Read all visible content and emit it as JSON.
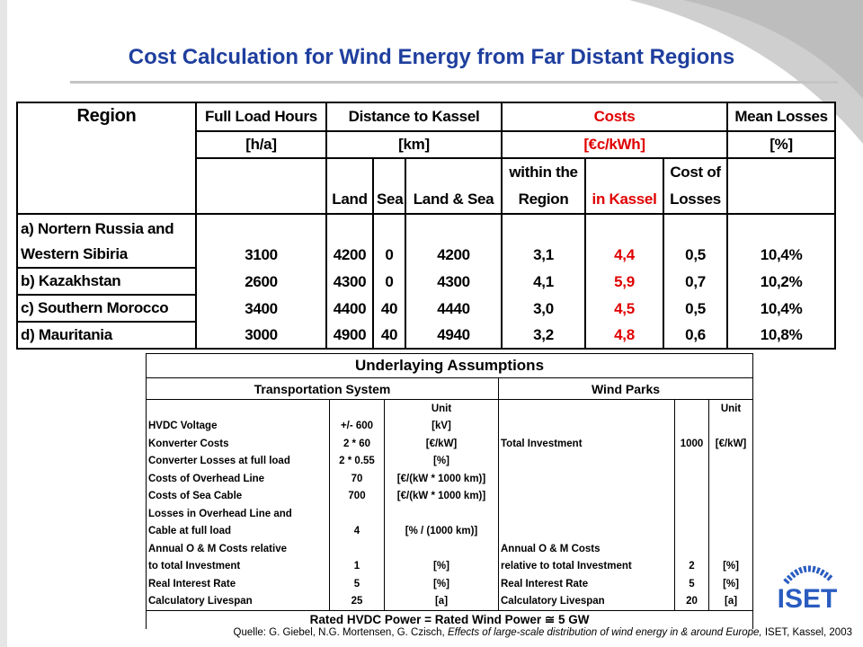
{
  "header": {
    "title": "Cost Calculation for Wind Energy from Far Distant Regions"
  },
  "costs_table": {
    "head": {
      "region": "Region",
      "hours": "Full Load Hours",
      "distance": "Distance to Kassel",
      "costs": "Costs",
      "losses": "Mean Losses"
    },
    "units": {
      "hours": "[h/a]",
      "distance": "[km]",
      "costs": "[€c/kWh]",
      "losses": "[%]"
    },
    "sub": {
      "land": "Land",
      "sea": "Sea",
      "land_sea": "Land & Sea",
      "within": "within the Region",
      "kassel": "in Kassel",
      "cost_losses": "Cost of Losses"
    },
    "rows": [
      {
        "region": [
          "a) Nortern Russia and",
          "Western Sibiria"
        ],
        "hours": "3100",
        "land": "4200",
        "sea": "0",
        "land_sea": "4200",
        "within": "3,1",
        "kassel": "4,4",
        "cost_losses": "0,5",
        "losses": "10,4%"
      },
      {
        "region": [
          "b) Kazakhstan"
        ],
        "hours": "2600",
        "land": "4300",
        "sea": "0",
        "land_sea": "4300",
        "within": "4,1",
        "kassel": "5,9",
        "cost_losses": "0,7",
        "losses": "10,2%"
      },
      {
        "region": [
          "c) Southern Morocco"
        ],
        "hours": "3400",
        "land": "4400",
        "sea": "40",
        "land_sea": "4440",
        "within": "3,0",
        "kassel": "4,5",
        "cost_losses": "0,5",
        "losses": "10,4%"
      },
      {
        "region": [
          "d) Mauritania"
        ],
        "hours": "3000",
        "land": "4900",
        "sea": "40",
        "land_sea": "4940",
        "within": "3,2",
        "kassel": "4,8",
        "cost_losses": "0,6",
        "losses": "10,8%"
      }
    ]
  },
  "assumptions": {
    "title": "Underlaying Assumptions",
    "transport_title": "Transportation System",
    "wind_title": "Wind Parks",
    "rows": [
      [
        null,
        null,
        "Unit",
        null,
        null,
        "Unit"
      ],
      [
        "HVDC Voltage",
        "+/- 600",
        "[kV]",
        null,
        null,
        null
      ],
      [
        "Konverter Costs",
        "2 * 60",
        "[€/kW]",
        "Total Investment",
        "1000",
        "[€/kW]"
      ],
      [
        "Converter Losses at full load",
        "2 * 0.55",
        "[%]",
        null,
        null,
        null
      ],
      [
        "Costs of Overhead Line",
        "70",
        "[€/(kW * 1000 km)]",
        null,
        null,
        null
      ],
      [
        "Costs of Sea Cable",
        "700",
        "[€/(kW * 1000 km)]",
        null,
        null,
        null
      ],
      [
        "Losses in Overhead Line and",
        null,
        null,
        null,
        null,
        null
      ],
      [
        "Cable at full load",
        "4",
        "[% / (1000 km)]",
        null,
        null,
        null
      ],
      [
        "Annual O & M Costs relative",
        null,
        null,
        "Annual O & M Costs",
        null,
        null
      ],
      [
        "to total Investment",
        "1",
        "[%]",
        "relative to total Investment",
        "2",
        "[%]"
      ],
      [
        "Real Interest Rate",
        "5",
        "[%]",
        "Real Interest Rate",
        "5",
        "[%]"
      ],
      [
        "Calculatory Livespan",
        "25",
        "[a]",
        "Calculatory Livespan",
        "20",
        "[a]"
      ]
    ],
    "footer": "Rated HVDC Power = Rated Wind Power ≅ 5 GW"
  },
  "source": {
    "prefix": "Quelle: G. Giebel, N.G. Mortensen, G. Czisch,",
    "title": "Effects of large-scale distribution of wind energy in & around Europe,",
    "suffix": "ISET, Kassel, 2003"
  },
  "logo": {
    "text": "ISET"
  }
}
